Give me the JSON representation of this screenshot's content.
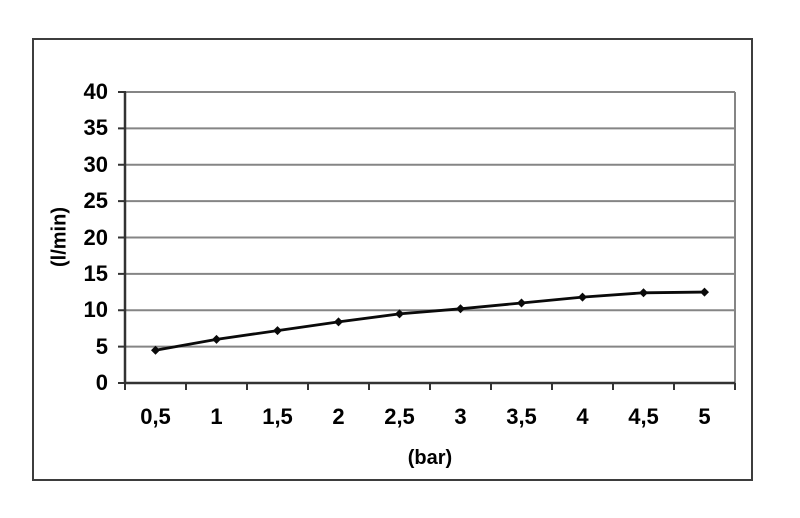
{
  "chart_data": {
    "type": "line",
    "categories": [
      "0,5",
      "1",
      "1,5",
      "2",
      "2,5",
      "3",
      "3,5",
      "4",
      "4,5",
      "5"
    ],
    "x_values": [
      0.5,
      1,
      1.5,
      2,
      2.5,
      3,
      3.5,
      4,
      4.5,
      5
    ],
    "values": [
      4.5,
      6.0,
      7.2,
      8.4,
      9.5,
      10.2,
      11.0,
      11.8,
      12.4,
      12.5
    ],
    "title": "",
    "xlabel": "(bar)",
    "ylabel": "(l/min)",
    "ylim": [
      0,
      40
    ],
    "y_ticks": [
      0,
      5,
      10,
      15,
      20,
      25,
      30,
      35,
      40
    ],
    "y_tick_labels": [
      "0",
      "5",
      "10",
      "15",
      "20",
      "25",
      "30",
      "35",
      "40"
    ],
    "grid": true,
    "legend": "none",
    "marker": "diamond",
    "colors": {
      "line": "#0a0a0a",
      "marker": "#0a0a0a",
      "gridline": "#858585",
      "axis": "#333333",
      "plot_right_border": "#858585",
      "frame_border": "#3d3d3d",
      "text": "#000000",
      "background": "#ffffff"
    }
  }
}
